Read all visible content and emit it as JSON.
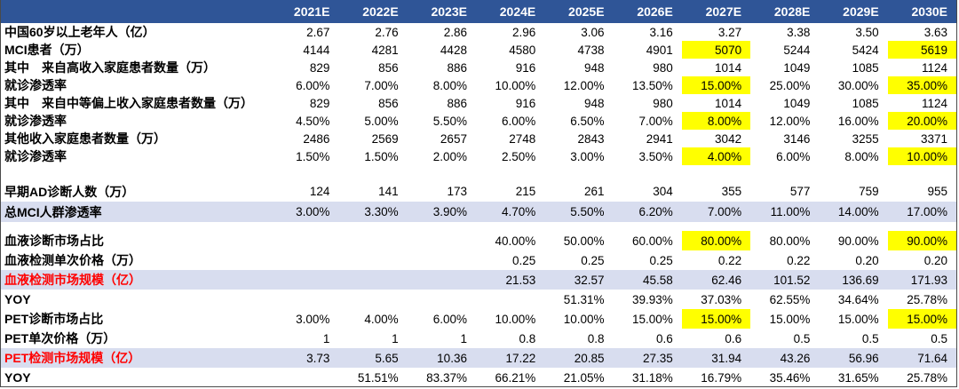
{
  "colors": {
    "header_bg": "#2F5597",
    "header_text": "#FFFFFF",
    "highlight": "#FFFF00",
    "band": "#D8DDEF",
    "red_label": "#FF0000"
  },
  "table": {
    "columns": [
      "2021E",
      "2022E",
      "2023E",
      "2024E",
      "2025E",
      "2026E",
      "2027E",
      "2028E",
      "2029E",
      "2030E"
    ],
    "rows": [
      {
        "label": "中国60岁以上老年人（亿）",
        "indent": 0,
        "group": "top",
        "band": false,
        "label_red": false,
        "highlight_cols": [],
        "values": [
          "2.67",
          "2.76",
          "2.86",
          "2.96",
          "3.06",
          "3.16",
          "3.27",
          "3.38",
          "3.50",
          "3.63"
        ]
      },
      {
        "label": "MCI患者（万）",
        "indent": 0,
        "group": "top",
        "band": false,
        "label_red": false,
        "highlight_cols": [
          6,
          9
        ],
        "values": [
          "4144",
          "4281",
          "4428",
          "4580",
          "4738",
          "4901",
          "5070",
          "5244",
          "5424",
          "5619"
        ]
      },
      {
        "label": "其中　来自高收入家庭患者数量（万）",
        "indent": 0,
        "group": "top",
        "band": false,
        "label_red": false,
        "highlight_cols": [],
        "values": [
          "829",
          "856",
          "886",
          "916",
          "948",
          "980",
          "1014",
          "1049",
          "1085",
          "1124"
        ]
      },
      {
        "label": "就诊渗透率",
        "indent": 1,
        "group": "top",
        "band": false,
        "label_red": false,
        "highlight_cols": [
          6,
          9
        ],
        "values": [
          "6.00%",
          "7.00%",
          "8.00%",
          "10.00%",
          "12.00%",
          "13.50%",
          "15.00%",
          "25.00%",
          "30.00%",
          "35.00%"
        ]
      },
      {
        "label": "其中　来自中等偏上收入家庭患者数量（万）",
        "indent": 0,
        "group": "top",
        "band": false,
        "label_red": false,
        "highlight_cols": [],
        "values": [
          "829",
          "856",
          "886",
          "916",
          "948",
          "980",
          "1014",
          "1049",
          "1085",
          "1124"
        ]
      },
      {
        "label": "就诊渗透率",
        "indent": 1,
        "group": "top",
        "band": false,
        "label_red": false,
        "highlight_cols": [
          6,
          9
        ],
        "values": [
          "4.50%",
          "5.00%",
          "5.50%",
          "6.00%",
          "6.50%",
          "7.00%",
          "8.00%",
          "12.00%",
          "16.00%",
          "20.00%"
        ]
      },
      {
        "label": "其他收入家庭患者数量（万）",
        "indent": 0,
        "group": "top",
        "band": false,
        "label_red": false,
        "highlight_cols": [],
        "values": [
          "2486",
          "2569",
          "2657",
          "2748",
          "2843",
          "2941",
          "3042",
          "3146",
          "3255",
          "3371"
        ]
      },
      {
        "label": "就诊渗透率",
        "indent": 1,
        "group": "top",
        "band": false,
        "label_red": false,
        "highlight_cols": [
          6,
          9
        ],
        "values": [
          "1.50%",
          "1.50%",
          "2.00%",
          "2.50%",
          "3.00%",
          "3.50%",
          "4.00%",
          "6.00%",
          "8.00%",
          "10.00%"
        ]
      },
      {
        "spacer": true,
        "group": "spacer"
      },
      {
        "label": "早期AD诊断人数（万）",
        "indent": 0,
        "group": "mid",
        "band": false,
        "label_red": false,
        "highlight_cols": [],
        "values": [
          "124",
          "141",
          "173",
          "215",
          "261",
          "304",
          "355",
          "577",
          "759",
          "955"
        ]
      },
      {
        "label": "总MCI人群渗透率",
        "indent": 0,
        "group": "mid",
        "band": true,
        "label_red": false,
        "highlight_cols": [],
        "values": [
          "3.00%",
          "3.30%",
          "3.90%",
          "4.70%",
          "5.50%",
          "6.20%",
          "7.00%",
          "11.00%",
          "14.00%",
          "17.00%"
        ]
      },
      {
        "spacer": true,
        "group": "spacer-small"
      },
      {
        "label": "血液诊断市场占比",
        "indent": 0,
        "group": "bottom",
        "band": false,
        "label_red": false,
        "highlight_cols": [
          6,
          9
        ],
        "values": [
          "",
          "",
          "",
          "40.00%",
          "50.00%",
          "60.00%",
          "80.00%",
          "80.00%",
          "90.00%",
          "90.00%"
        ]
      },
      {
        "label": "血液检测单次价格（万）",
        "indent": 0,
        "group": "bottom",
        "band": false,
        "label_red": false,
        "highlight_cols": [],
        "values": [
          "",
          "",
          "",
          "0.25",
          "0.25",
          "0.25",
          "0.22",
          "0.22",
          "0.20",
          "0.20"
        ]
      },
      {
        "label": "血液检测市场规模（亿）",
        "indent": 0,
        "group": "bottom",
        "band": true,
        "label_red": true,
        "highlight_cols": [],
        "values": [
          "",
          "",
          "",
          "21.53",
          "32.57",
          "45.58",
          "62.46",
          "101.52",
          "136.69",
          "171.93"
        ]
      },
      {
        "label": "YOY",
        "indent": 0,
        "group": "bottom",
        "band": false,
        "label_red": false,
        "highlight_cols": [],
        "values": [
          "",
          "",
          "",
          "",
          "51.31%",
          "39.93%",
          "37.03%",
          "62.55%",
          "34.64%",
          "25.78%"
        ]
      },
      {
        "label": "PET诊断市场占比",
        "indent": 0,
        "group": "bottom",
        "band": false,
        "label_red": false,
        "highlight_cols": [
          6,
          9
        ],
        "values": [
          "3.00%",
          "4.00%",
          "6.00%",
          "10.00%",
          "10.00%",
          "15.00%",
          "15.00%",
          "15.00%",
          "15.00%",
          "15.00%"
        ]
      },
      {
        "label": "PET单次价格（万）",
        "indent": 0,
        "group": "bottom",
        "band": false,
        "label_red": false,
        "highlight_cols": [],
        "values": [
          "1",
          "1",
          "1",
          "0.8",
          "0.8",
          "0.6",
          "0.6",
          "0.5",
          "0.5",
          "0.5"
        ]
      },
      {
        "label": "PET检测市场规模（亿）",
        "indent": 0,
        "group": "bottom",
        "band": true,
        "label_red": true,
        "highlight_cols": [],
        "values": [
          "3.73",
          "5.65",
          "10.36",
          "17.22",
          "20.85",
          "27.35",
          "31.94",
          "43.26",
          "56.96",
          "71.64"
        ]
      },
      {
        "label": "YOY",
        "indent": 0,
        "group": "bottom",
        "band": false,
        "label_red": false,
        "highlight_cols": [],
        "values": [
          "",
          "51.51%",
          "83.37%",
          "66.21%",
          "21.05%",
          "31.18%",
          "16.79%",
          "35.46%",
          "31.65%",
          "25.78%"
        ]
      }
    ]
  }
}
